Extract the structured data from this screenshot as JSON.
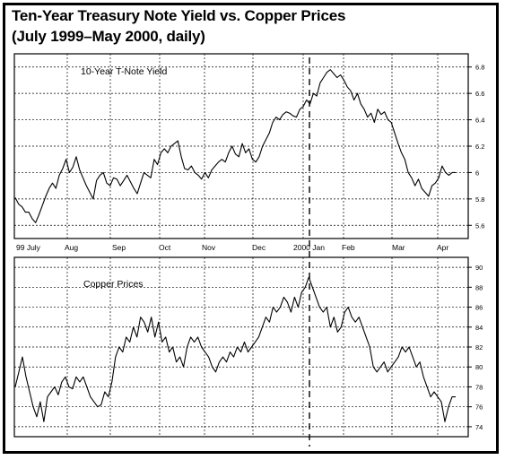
{
  "page": {
    "title_line1": "Ten-Year Treasury Note Yield vs. Copper Prices",
    "title_line2": "(July 1999–May 2000, daily)"
  },
  "chart_data": [
    {
      "type": "line",
      "panel": "top",
      "title": "10-Year T-Note Yield",
      "label": "10-Year T-Note Yield",
      "yticks": [
        5.6,
        5.8,
        6.0,
        6.2,
        6.4,
        6.6,
        6.8
      ],
      "ytick_labels": [
        "5.6",
        "5.8",
        "6",
        "6.2",
        "6.4",
        "6.6",
        "6.8"
      ],
      "ylim": [
        5.5,
        6.9
      ],
      "grid": true,
      "xtick_labels": [
        "99 July",
        "Aug",
        "Sep",
        "Oct",
        "Nov",
        "Dec",
        "2000 Jan",
        "Feb",
        "Mar",
        "Apr"
      ],
      "series": [
        {
          "values": [
            5.81,
            5.76,
            5.74,
            5.7,
            5.7,
            5.65,
            5.62,
            5.68,
            5.75,
            5.82,
            5.88,
            5.92,
            5.88,
            5.98,
            6.03,
            6.1,
            6.0,
            6.04,
            6.12,
            6.02,
            5.96,
            5.9,
            5.85,
            5.8,
            5.94,
            5.98,
            6.0,
            5.92,
            5.9,
            5.96,
            5.95,
            5.9,
            5.94,
            5.98,
            5.93,
            5.88,
            5.84,
            5.92,
            6.0,
            5.98,
            5.96,
            6.1,
            6.06,
            6.15,
            6.18,
            6.15,
            6.2,
            6.22,
            6.24,
            6.12,
            6.03,
            6.02,
            6.05,
            6.0,
            5.98,
            5.95,
            6.0,
            5.96,
            6.02,
            6.05,
            6.08,
            6.1,
            6.08,
            6.15,
            6.2,
            6.14,
            6.12,
            6.22,
            6.15,
            6.18,
            6.1,
            6.08,
            6.12,
            6.2,
            6.25,
            6.3,
            6.38,
            6.42,
            6.4,
            6.44,
            6.46,
            6.45,
            6.43,
            6.42,
            6.48,
            6.5,
            6.55,
            6.52,
            6.6,
            6.58,
            6.68,
            6.72,
            6.76,
            6.78,
            6.75,
            6.72,
            6.74,
            6.7,
            6.65,
            6.62,
            6.55,
            6.6,
            6.52,
            6.48,
            6.42,
            6.45,
            6.38,
            6.48,
            6.44,
            6.46,
            6.4,
            6.38,
            6.3,
            6.22,
            6.15,
            6.1,
            6.0,
            5.96,
            5.9,
            5.95,
            5.88,
            5.85,
            5.82,
            5.9,
            5.92,
            5.96,
            6.05,
            6.0,
            5.98,
            6.0,
            6.0
          ]
        }
      ]
    },
    {
      "type": "line",
      "panel": "bottom",
      "title": "Copper Prices",
      "label": "Copper Prices",
      "yticks": [
        74,
        76,
        78,
        80,
        82,
        84,
        86,
        88,
        90
      ],
      "ytick_labels": [
        "74",
        "76",
        "78",
        "80",
        "82",
        "84",
        "86",
        "88",
        "90"
      ],
      "ylim": [
        73,
        91
      ],
      "grid": true,
      "series": [
        {
          "values": [
            78.0,
            79.5,
            81.0,
            79.0,
            77.5,
            76.0,
            75.0,
            76.5,
            74.5,
            77.0,
            77.5,
            78.0,
            77.2,
            78.5,
            79.0,
            78.0,
            77.8,
            79.0,
            78.5,
            79.0,
            78.0,
            77.0,
            76.5,
            76.0,
            76.2,
            77.5,
            77.0,
            78.5,
            81.0,
            82.0,
            81.5,
            83.0,
            82.5,
            84.0,
            83.0,
            85.0,
            84.5,
            83.5,
            85.0,
            83.0,
            84.5,
            82.5,
            83.0,
            81.5,
            82.0,
            80.5,
            81.0,
            80.0,
            82.0,
            83.0,
            82.5,
            83.0,
            82.0,
            81.5,
            81.0,
            80.0,
            79.5,
            80.5,
            81.0,
            80.5,
            81.5,
            81.0,
            82.0,
            81.5,
            82.5,
            81.5,
            82.0,
            82.5,
            83.0,
            84.0,
            85.0,
            84.5,
            86.0,
            85.5,
            86.0,
            87.0,
            86.5,
            85.5,
            87.0,
            86.0,
            87.5,
            88.0,
            89.0,
            88.0,
            87.0,
            86.0,
            85.5,
            86.0,
            84.0,
            85.0,
            83.5,
            84.0,
            85.5,
            86.0,
            85.0,
            84.5,
            85.0,
            84.0,
            83.0,
            82.0,
            80.0,
            79.5,
            80.0,
            80.5,
            79.5,
            80.0,
            80.5,
            81.0,
            82.0,
            81.5,
            82.0,
            81.0,
            80.0,
            80.5,
            79.0,
            78.0,
            77.0,
            77.5,
            77.0,
            76.5,
            74.5,
            76.0,
            77.0,
            77.0
          ]
        }
      ]
    }
  ],
  "annotation": {
    "divider": "2000 Jan",
    "style": "dashed vertical line through both panels"
  }
}
